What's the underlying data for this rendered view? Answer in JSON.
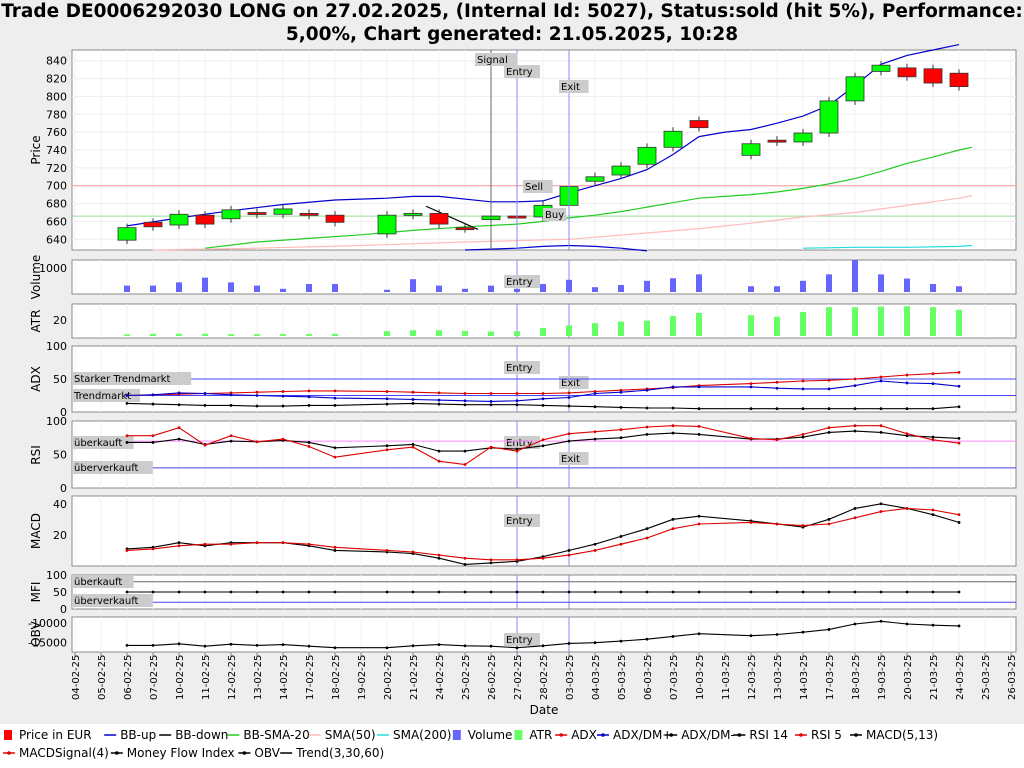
{
  "title": {
    "line1": "Trade DE0006292030 LONG on 27.02.2025, (Internal Id: 5027), Status:sold (hit 5%), Performance:",
    "line2": "5,00%, Chart generated: 21.05.2025, 10:28"
  },
  "colors": {
    "up": "#00ff00",
    "down": "#ff0000",
    "bb": "#0000cc",
    "bbsma": "#22cc22",
    "sma50": "#ffbbbb",
    "sma200": "#22dddd",
    "volume": "#6666ff",
    "atr": "#66ff66",
    "adx": "#dd0000",
    "dmplus": "#0000cc",
    "dmminus": "#000000",
    "rsi14": "#000000",
    "rsi5": "#dd0000",
    "macd": "#000000",
    "macdsig": "#dd0000",
    "signal_line": "#666666",
    "entry_line": "#8888ff",
    "exit_line": "#8888ff"
  },
  "chart_data": {
    "type": "line",
    "x_label": "Date",
    "dates": [
      "04-02-25",
      "05-02-25",
      "06-02-25",
      "07-02-25",
      "10-02-25",
      "11-02-25",
      "12-02-25",
      "13-02-25",
      "14-02-25",
      "17-02-25",
      "18-02-25",
      "19-02-25",
      "20-02-25",
      "21-02-25",
      "24-02-25",
      "25-02-25",
      "26-02-25",
      "27-02-25",
      "28-02-25",
      "03-03-25",
      "04-03-25",
      "05-03-25",
      "06-03-25",
      "07-03-25",
      "10-03-25",
      "11-03-25",
      "12-03-25",
      "13-03-25",
      "14-03-25",
      "17-03-25",
      "18-03-25",
      "19-03-25",
      "20-03-25",
      "21-03-25",
      "24-03-25",
      "25-03-25",
      "26-03-25"
    ],
    "candles": [
      {
        "d": "06-02-25",
        "o": 639,
        "c": 653
      },
      {
        "d": "07-02-25",
        "o": 659,
        "c": 654
      },
      {
        "d": "10-02-25",
        "o": 656,
        "c": 668
      },
      {
        "d": "11-02-25",
        "o": 667,
        "c": 657
      },
      {
        "d": "12-02-25",
        "o": 663,
        "c": 673
      },
      {
        "d": "13-02-25",
        "o": 670,
        "c": 668
      },
      {
        "d": "14-02-25",
        "o": 668,
        "c": 674
      },
      {
        "d": "17-02-25",
        "o": 669,
        "c": 667
      },
      {
        "d": "18-02-25",
        "o": 667,
        "c": 659
      },
      {
        "d": "20-02-25",
        "o": 646,
        "c": 667
      },
      {
        "d": "21-02-25",
        "o": 667,
        "c": 669
      },
      {
        "d": "24-02-25",
        "o": 669,
        "c": 657
      },
      {
        "d": "25-02-25",
        "o": 653,
        "c": 652
      },
      {
        "d": "26-02-25",
        "o": 662,
        "c": 666
      },
      {
        "d": "27-02-25",
        "o": 666,
        "c": 665
      },
      {
        "d": "28-02-25",
        "o": 665,
        "c": 678
      },
      {
        "d": "03-03-25",
        "o": 678,
        "c": 699
      },
      {
        "d": "04-03-25",
        "o": 705,
        "c": 710
      },
      {
        "d": "05-03-25",
        "o": 712,
        "c": 722
      },
      {
        "d": "06-03-25",
        "o": 724,
        "c": 743
      },
      {
        "d": "07-03-25",
        "o": 743,
        "c": 761
      },
      {
        "d": "10-03-25",
        "o": 773,
        "c": 765
      },
      {
        "d": "12-03-25",
        "o": 734,
        "c": 747
      },
      {
        "d": "13-03-25",
        "o": 751,
        "c": 749
      },
      {
        "d": "14-03-25",
        "o": 749,
        "c": 759
      },
      {
        "d": "17-03-25",
        "o": 759,
        "c": 795
      },
      {
        "d": "18-03-25",
        "o": 795,
        "c": 822
      },
      {
        "d": "19-03-25",
        "o": 828,
        "c": 835
      },
      {
        "d": "20-03-25",
        "o": 832,
        "c": 822
      },
      {
        "d": "21-03-25",
        "o": 831,
        "c": 815
      },
      {
        "d": "24-03-25",
        "o": 826,
        "c": 811
      }
    ],
    "price_axis": {
      "label": "Price",
      "ticks": [
        640,
        660,
        680,
        700,
        720,
        740,
        760,
        780,
        800,
        820,
        840
      ],
      "ylim": [
        628,
        852
      ]
    },
    "volume_axis": {
      "label": "Volume",
      "ticks": [
        1000
      ]
    },
    "atr_axis": {
      "label": "ATR",
      "ticks": [
        20
      ]
    },
    "adx_axis": {
      "label": "ADX",
      "ticks": [
        0,
        50,
        100
      ]
    },
    "rsi_axis": {
      "label": "RSI",
      "ticks": [
        0,
        50,
        100
      ]
    },
    "macd_axis": {
      "label": "MACD",
      "ticks": [
        20,
        40
      ]
    },
    "mfi_axis": {
      "label": "MFI",
      "ticks": [
        0,
        50,
        100
      ]
    },
    "obv_axis": {
      "label": "OBV",
      "ticks": [
        -10000,
        -15000
      ]
    },
    "annotations": {
      "signal": "Signal",
      "entry": "Entry",
      "exit": "Exit",
      "sell": "Sell",
      "buy": "Buy",
      "starker_trend": "Starker Trendmarkt",
      "trendmarkt": "Trendmarkt",
      "ueberkauft": "überkauft",
      "ueberverkauft": "überverkauft"
    },
    "legend": [
      "Price in EUR",
      "BB-up",
      "BB-down",
      "BB-SMA-20",
      "SMA(50)",
      "SMA(200)",
      "Volume",
      "ATR",
      "ADX",
      "ADX/DM+",
      "ADX/DM-",
      "RSI 14",
      "RSI 5",
      "MACD(5,13)",
      "MACDSignal(4)",
      "Money Flow Index",
      "OBV",
      "Trend(3,30,60)"
    ]
  }
}
